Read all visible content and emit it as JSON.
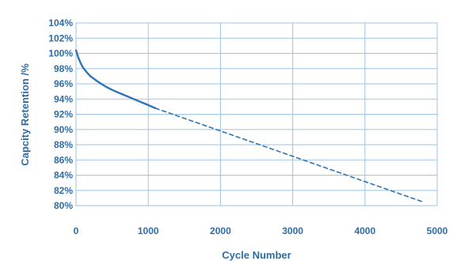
{
  "chart_data": {
    "type": "line",
    "title": "",
    "xlabel": "Cycle Number",
    "ylabel": "Capcity Retention /%",
    "xlim": [
      0,
      5000
    ],
    "ylim": [
      80,
      104
    ],
    "x_ticks": [
      "0",
      "1000",
      "2000",
      "3000",
      "4000",
      "5000"
    ],
    "y_ticks": [
      "80%",
      "82%",
      "84%",
      "86%",
      "88%",
      "90%",
      "92%",
      "94%",
      "96%",
      "98%",
      "100%",
      "102%",
      "104%"
    ],
    "grid": true,
    "line_color": "#2e75b6",
    "grid_color": "#9dc3e6",
    "series": [
      {
        "style": "solid",
        "x": [
          0,
          30,
          60,
          100,
          150,
          200,
          300,
          400,
          500,
          600,
          700,
          800,
          900,
          1000,
          1100
        ],
        "y": [
          100.4,
          99.5,
          98.8,
          98.1,
          97.5,
          97.0,
          96.3,
          95.7,
          95.2,
          94.8,
          94.4,
          94.0,
          93.6,
          93.2,
          92.8
        ]
      },
      {
        "style": "dashed",
        "x": [
          1100,
          4800
        ],
        "y": [
          92.8,
          80.5
        ]
      }
    ]
  }
}
